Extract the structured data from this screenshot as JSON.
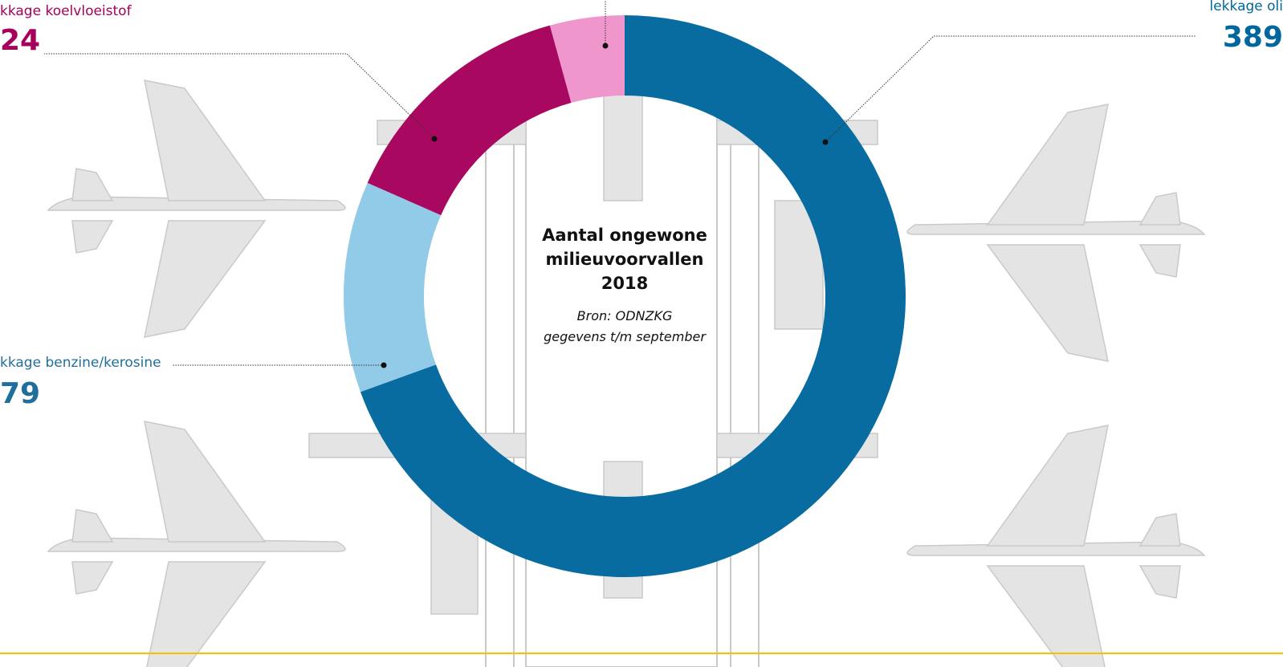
{
  "chart_data": {
    "type": "donut",
    "title_lines": [
      "Aantal ongewone",
      "milieuvoorvallen",
      "2018"
    ],
    "source_lines": [
      "Bron: ODNZKG",
      "gegevens t/m september"
    ],
    "categories": [
      "lekkage oli",
      null,
      "kkage benzine/kerosine",
      "kkage koelvloeistof"
    ],
    "values": [
      389,
      68,
      79,
      24
    ],
    "colors": [
      "#00679e",
      "#8ec9e6",
      "#a6005b",
      "#ee93cb"
    ]
  }
}
